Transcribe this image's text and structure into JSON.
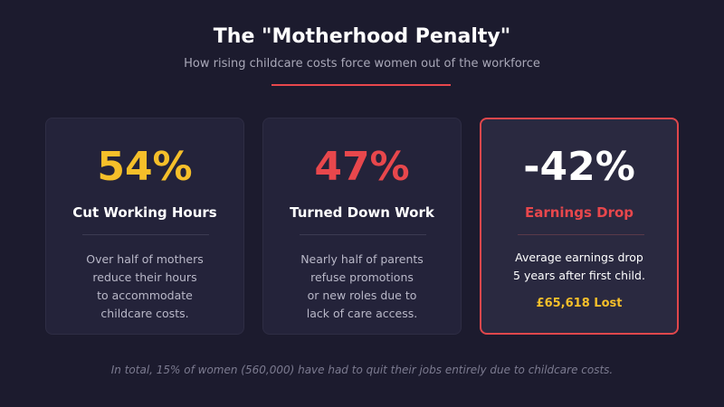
{
  "header": {
    "title": "The \"Motherhood Penalty\"",
    "subtitle": "How rising childcare costs force women out of the workforce"
  },
  "cards": [
    {
      "stat": "54%",
      "label": "Cut Working Hours",
      "description": [
        "Over half of mothers",
        "reduce their hours",
        "to accommodate",
        "childcare costs."
      ]
    },
    {
      "stat": "47%",
      "label": "Turned Down Work",
      "description": [
        "Nearly half of parents",
        "refuse promotions",
        "or new roles due to",
        "lack of care access."
      ]
    },
    {
      "stat": "-42%",
      "label": "Earnings Drop",
      "description": [
        "Average earnings drop",
        "5 years after first child."
      ],
      "extra": "£65,618 Lost"
    }
  ],
  "footer": "In total, 15% of women (560,000) have had to quit their jobs entirely due to childcare costs."
}
